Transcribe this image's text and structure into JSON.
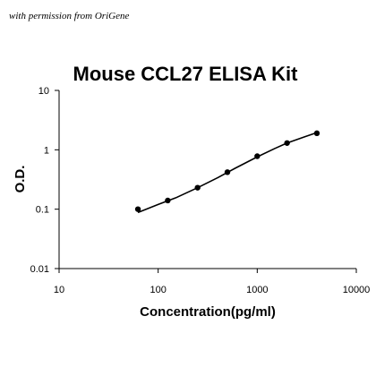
{
  "watermark": "with permission from OriGene",
  "chart_data": {
    "type": "scatter",
    "title": "Mouse CCL27 ELISA Kit",
    "xlabel": "Concentration(pg/ml)",
    "ylabel": "O.D.",
    "xscale": "log",
    "yscale": "log",
    "xlim": [
      10,
      10000
    ],
    "ylim": [
      0.01,
      10
    ],
    "x_ticks": [
      10,
      100,
      1000,
      10000
    ],
    "x_tick_labels": [
      "10",
      "100",
      "1000",
      "10000"
    ],
    "y_ticks": [
      0.01,
      0.1,
      1,
      10
    ],
    "y_tick_labels": [
      "0.01",
      "0.1",
      "1",
      "10"
    ],
    "grid": false,
    "legend": "none",
    "colors": {
      "points": "#000000",
      "line": "#000000",
      "axes": "#000000"
    },
    "series": [
      {
        "x": [
          62.5,
          125,
          250,
          500,
          1000,
          2000,
          4000
        ],
        "y": [
          0.1,
          0.14,
          0.23,
          0.42,
          0.78,
          1.3,
          1.9
        ],
        "fit_curve": true,
        "fit_x": [
          62.5,
          100,
          150,
          250,
          400,
          600,
          1000,
          1500,
          2000,
          3000,
          4000
        ],
        "fit_y": [
          0.088,
          0.12,
          0.155,
          0.23,
          0.34,
          0.49,
          0.76,
          1.05,
          1.3,
          1.65,
          1.95
        ]
      }
    ]
  }
}
